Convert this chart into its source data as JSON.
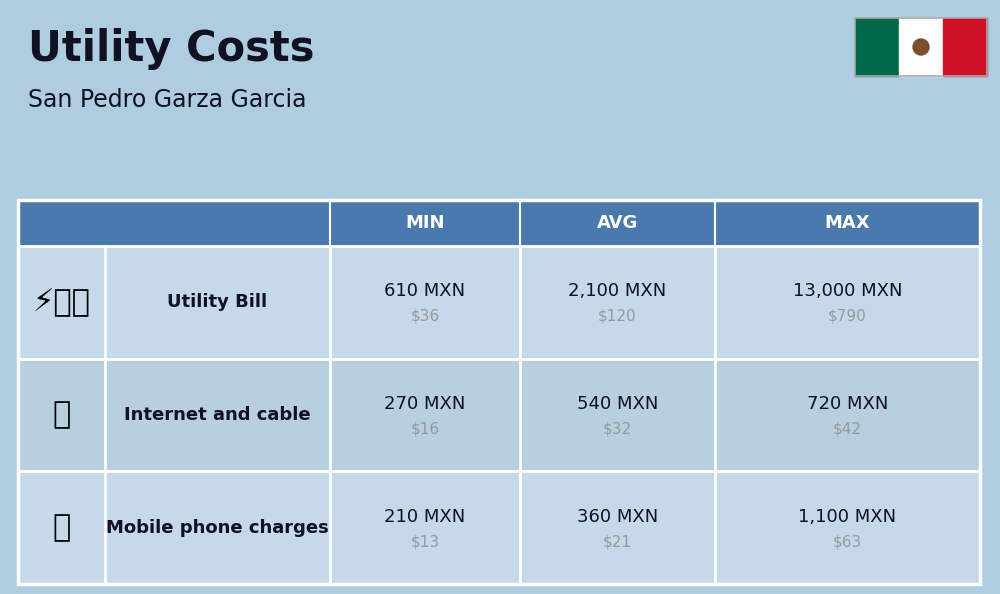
{
  "title": "Utility Costs",
  "subtitle": "San Pedro Garza Garcia",
  "background_color": "#aecde0",
  "header_color": "#4a7aad",
  "header_text_color": "#ffffff",
  "row_colors": [
    "#c5d9ea",
    "#b8cfdf"
  ],
  "border_color": "#ffffff",
  "text_dark": "#111122",
  "text_gray": "#999999",
  "col_headers": [
    "MIN",
    "AVG",
    "MAX"
  ],
  "rows": [
    {
      "label": "Utility Bill",
      "icon": "⚡",
      "min_mxn": "610 MXN",
      "min_usd": "$36",
      "avg_mxn": "2,100 MXN",
      "avg_usd": "$120",
      "max_mxn": "13,000 MXN",
      "max_usd": "$790"
    },
    {
      "label": "Internet and cable",
      "icon": "📶",
      "min_mxn": "270 MXN",
      "min_usd": "$16",
      "avg_mxn": "540 MXN",
      "avg_usd": "$32",
      "max_mxn": "720 MXN",
      "max_usd": "$42"
    },
    {
      "label": "Mobile phone charges",
      "icon": "📱",
      "min_mxn": "210 MXN",
      "min_usd": "$13",
      "avg_mxn": "360 MXN",
      "avg_usd": "$21",
      "max_mxn": "1,100 MXN",
      "max_usd": "$63"
    }
  ],
  "title_fontsize": 30,
  "subtitle_fontsize": 17,
  "header_fontsize": 13,
  "row_label_fontsize": 13,
  "row_value_fontsize": 13,
  "row_subvalue_fontsize": 11,
  "icon_fontsize": 28,
  "flag_green": "#006847",
  "flag_white": "#ffffff",
  "flag_red": "#ce1126"
}
